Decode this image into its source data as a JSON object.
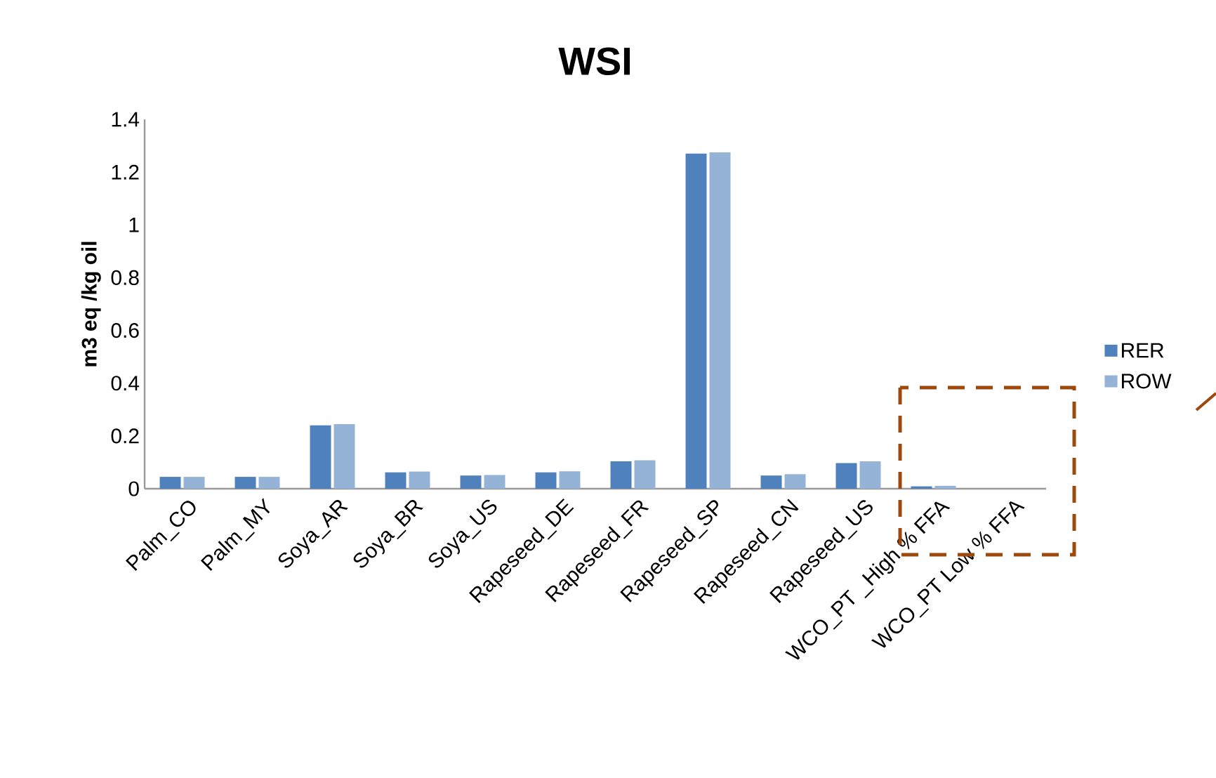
{
  "chart_data": {
    "type": "bar",
    "title": "WSI",
    "ylabel": "m3 eq /kg oil",
    "categories": [
      "Palm_CO",
      "Palm_MY",
      "Soya_AR",
      "Soya_BR",
      "Soya_US",
      "Rapeseed_DE",
      "Rapeseed_FR",
      "Rapeseed_SP",
      "Rapeseed_CN",
      "Rapeseed_US",
      "WCO_PT _High % FFA",
      "WCO_PT Low % FFA"
    ],
    "series": [
      {
        "name": "RER",
        "color": "#4f81bd",
        "values": [
          0.045,
          0.045,
          0.24,
          0.062,
          0.05,
          0.062,
          0.104,
          1.27,
          0.05,
          0.097,
          0.009,
          0
        ]
      },
      {
        "name": "ROW",
        "color": "#95b3d7",
        "values": [
          0.045,
          0.045,
          0.245,
          0.065,
          0.052,
          0.066,
          0.108,
          1.275,
          0.055,
          0.104,
          0.011,
          0
        ]
      }
    ],
    "ylim": [
      0,
      1.4
    ],
    "yticks": [
      0,
      0.2,
      0.4,
      0.6,
      0.8,
      1,
      1.2,
      1.4
    ],
    "grid": false,
    "legend": "right"
  }
}
